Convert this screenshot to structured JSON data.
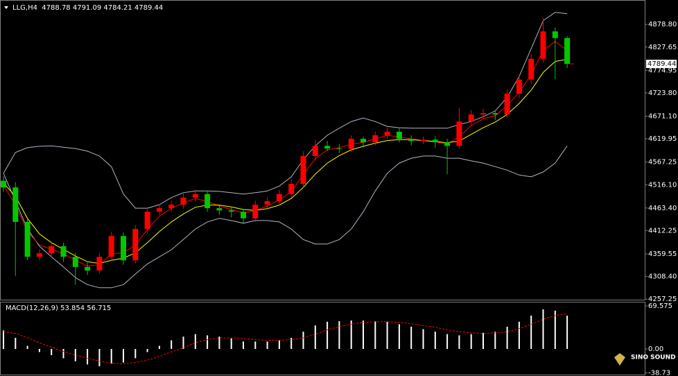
{
  "chart_data": [
    {
      "type": "candlestick",
      "title": "LLG,H4  4788.78 4791.09 4784.21 4789.44",
      "open": [
        4525,
        4510,
        4432,
        4353,
        4361,
        4377,
        4353,
        4330,
        4322,
        4353,
        4400,
        4345,
        4416,
        4455,
        4463,
        4471,
        4487,
        4495,
        4463,
        4458,
        4455,
        4440,
        4471,
        4479,
        4495,
        4518,
        4581,
        4604,
        4598,
        4597,
        4620,
        4612,
        4628,
        4636,
        4620,
        4615,
        4618,
        4612,
        4604,
        4659,
        4675,
        4678,
        4675,
        4722,
        4754,
        4801,
        4863,
        4848
      ],
      "high": [
        4535,
        4522,
        4440,
        4370,
        4388,
        4385,
        4362,
        4340,
        4362,
        4410,
        4408,
        4425,
        4465,
        4472,
        4480,
        4496,
        4505,
        4502,
        4470,
        4466,
        4462,
        4480,
        4488,
        4505,
        4528,
        4592,
        4618,
        4615,
        4608,
        4628,
        4625,
        4636,
        4645,
        4644,
        4628,
        4625,
        4626,
        4620,
        4690,
        4685,
        4688,
        4685,
        4732,
        4765,
        4812,
        4893,
        4872,
        4852
      ],
      "low": [
        4500,
        4310,
        4345,
        4345,
        4352,
        4342,
        4290,
        4312,
        4315,
        4345,
        4335,
        4338,
        4405,
        4448,
        4455,
        4462,
        4478,
        4455,
        4448,
        4442,
        4428,
        4432,
        4462,
        4470,
        4486,
        4510,
        4572,
        4592,
        4588,
        4590,
        4600,
        4605,
        4620,
        4612,
        4605,
        4608,
        4600,
        4540,
        4598,
        4650,
        4665,
        4662,
        4668,
        4712,
        4745,
        4792,
        4755,
        4780
      ],
      "close": [
        4510,
        4432,
        4353,
        4361,
        4377,
        4353,
        4330,
        4322,
        4353,
        4400,
        4345,
        4416,
        4455,
        4463,
        4471,
        4487,
        4495,
        4463,
        4458,
        4455,
        4440,
        4471,
        4479,
        4495,
        4518,
        4581,
        4604,
        4598,
        4597,
        4620,
        4612,
        4628,
        4636,
        4620,
        4615,
        4618,
        4612,
        4604,
        4659,
        4675,
        4678,
        4675,
        4722,
        4754,
        4801,
        4863,
        4848,
        4789.44
      ],
      "up_color": "#ff0000",
      "down_color": "#00c800",
      "lines": [
        {
          "color": "#b4b4c8",
          "values": [
            4542,
            4589,
            4600,
            4603,
            4604,
            4601,
            4598,
            4592,
            4581,
            4557,
            4495,
            4463,
            4463,
            4471,
            4487,
            4498,
            4502,
            4502,
            4501,
            4498,
            4495,
            4498,
            4502,
            4513,
            4534,
            4573,
            4604,
            4628,
            4644,
            4659,
            4667,
            4659,
            4648,
            4645,
            4644,
            4644,
            4644,
            4644,
            4652,
            4659,
            4670,
            4683,
            4714,
            4761,
            4824,
            4887,
            4906,
            4903
          ]
        },
        {
          "color": "#b4b4c8",
          "values": [
            4542,
            4479,
            4416,
            4377,
            4353,
            4330,
            4306,
            4290,
            4283,
            4283,
            4290,
            4314,
            4337,
            4353,
            4369,
            4392,
            4416,
            4432,
            4440,
            4435,
            4429,
            4435,
            4435,
            4432,
            4416,
            4392,
            4382,
            4382,
            4392,
            4416,
            4455,
            4502,
            4542,
            4565,
            4576,
            4581,
            4581,
            4576,
            4576,
            4570,
            4565,
            4557,
            4549,
            4538,
            4534,
            4545,
            4565,
            4604
          ]
        },
        {
          "color": "#ff0000",
          "values": [
            4515,
            4470,
            4410,
            4380,
            4370,
            4360,
            4345,
            4332,
            4335,
            4360,
            4362,
            4380,
            4415,
            4445,
            4463,
            4475,
            4485,
            4478,
            4468,
            4460,
            4452,
            4458,
            4468,
            4482,
            4500,
            4540,
            4575,
            4595,
            4600,
            4608,
            4612,
            4620,
            4628,
            4624,
            4620,
            4616,
            4613,
            4608,
            4625,
            4650,
            4665,
            4672,
            4695,
            4725,
            4765,
            4820,
            4840,
            4820
          ]
        },
        {
          "color": "#ffff00",
          "values": [
            4520,
            4490,
            4440,
            4405,
            4385,
            4370,
            4355,
            4342,
            4338,
            4345,
            4350,
            4362,
            4385,
            4410,
            4432,
            4450,
            4465,
            4470,
            4470,
            4466,
            4460,
            4458,
            4462,
            4470,
            4485,
            4510,
            4540,
            4565,
            4582,
            4595,
            4603,
            4610,
            4616,
            4618,
            4618,
            4616,
            4614,
            4611,
            4615,
            4630,
            4645,
            4658,
            4675,
            4700,
            4730,
            4770,
            4795,
            4800
          ]
        }
      ],
      "last_price": 4789.44,
      "ylim": [
        4256,
        4934
      ],
      "yticks": [
        {
          "value": 4878.8,
          "label": "4878.80"
        },
        4827.65,
        4774.95,
        {
          "value": 4723.8,
          "label": "4723.80"
        },
        {
          "value": 4671.1,
          "label": "4671.10"
        },
        4619.95,
        4567.25,
        {
          "value": 4516.1,
          "label": "4516.10"
        },
        {
          "value": 4463.4,
          "label": "4463.40"
        },
        4412.25,
        4359.55,
        {
          "value": 4308.4,
          "label": "4308.40"
        },
        4257.25
      ],
      "watermark": "SINO SOUND"
    },
    {
      "type": "macd",
      "title": "MACD(12,26,9) 53.854 56.715",
      "values": [
        30,
        18,
        5,
        -5,
        -10,
        -15,
        -20,
        -25,
        -28,
        -24,
        -22,
        -15,
        -5,
        5,
        14,
        20,
        24,
        22,
        20,
        17,
        12,
        12,
        12,
        14,
        18,
        28,
        38,
        44,
        45,
        46,
        46,
        45,
        44,
        40,
        36,
        32,
        28,
        24,
        22,
        24,
        26,
        28,
        36,
        44,
        54,
        64,
        62,
        53.854
      ],
      "color": "#ffffff",
      "signal": {
        "color": "#ff0000",
        "values": [
          28,
          25,
          18,
          10,
          3,
          -4,
          -10,
          -15,
          -20,
          -23,
          -24,
          -22,
          -18,
          -12,
          -5,
          2,
          10,
          15,
          18,
          18,
          17,
          15,
          14,
          14,
          15,
          18,
          24,
          31,
          36,
          40,
          43,
          44,
          44,
          43,
          41,
          38,
          35,
          31,
          28,
          26,
          25,
          26,
          28,
          33,
          40,
          48,
          54,
          56.715
        ]
      },
      "ylim": [
        -41.5,
        75.2
      ],
      "yticks": [
        69.575,
        {
          "value": 0,
          "label": "0.00"
        },
        -38.73
      ]
    }
  ]
}
